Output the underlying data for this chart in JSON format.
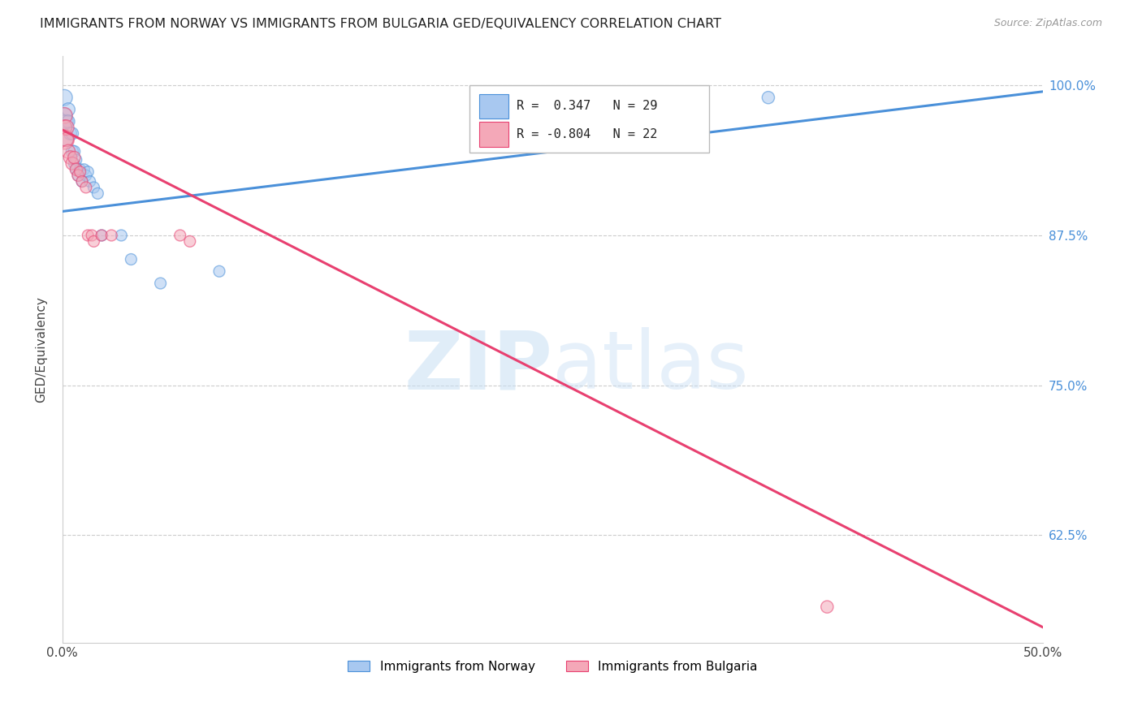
{
  "title": "IMMIGRANTS FROM NORWAY VS IMMIGRANTS FROM BULGARIA GED/EQUIVALENCY CORRELATION CHART",
  "source": "Source: ZipAtlas.com",
  "ylabel": "GED/Equivalency",
  "yticks": [
    0.625,
    0.75,
    0.875,
    1.0
  ],
  "ytick_labels": [
    "62.5%",
    "75.0%",
    "87.5%",
    "100.0%"
  ],
  "xmin": 0.0,
  "xmax": 0.5,
  "ymin": 0.535,
  "ymax": 1.025,
  "norway_R": 0.347,
  "norway_N": 29,
  "bulgaria_R": -0.804,
  "bulgaria_N": 22,
  "norway_color": "#a8c8f0",
  "bulgaria_color": "#f4a8b8",
  "norway_line_color": "#4a90d9",
  "bulgaria_line_color": "#e84070",
  "watermark_color": "#ddeeff",
  "norway_line_x0": 0.0,
  "norway_line_x1": 0.5,
  "norway_line_y0": 0.895,
  "norway_line_y1": 0.995,
  "bulgaria_line_x0": 0.0,
  "bulgaria_line_x1": 0.5,
  "bulgaria_line_y0": 0.963,
  "bulgaria_line_y1": 0.548,
  "norway_x": [
    0.001,
    0.001,
    0.001,
    0.002,
    0.002,
    0.003,
    0.003,
    0.004,
    0.005,
    0.005,
    0.006,
    0.006,
    0.007,
    0.007,
    0.008,
    0.009,
    0.01,
    0.011,
    0.012,
    0.013,
    0.014,
    0.016,
    0.018,
    0.02,
    0.03,
    0.035,
    0.05,
    0.08,
    0.36
  ],
  "norway_y": [
    0.99,
    0.975,
    0.965,
    0.97,
    0.955,
    0.98,
    0.97,
    0.96,
    0.945,
    0.96,
    0.945,
    0.935,
    0.938,
    0.93,
    0.925,
    0.93,
    0.92,
    0.93,
    0.925,
    0.928,
    0.92,
    0.915,
    0.91,
    0.875,
    0.875,
    0.855,
    0.835,
    0.845,
    0.99
  ],
  "norway_sizes": [
    200,
    180,
    160,
    150,
    140,
    140,
    130,
    130,
    120,
    120,
    110,
    100,
    100,
    100,
    100,
    100,
    100,
    100,
    100,
    100,
    100,
    100,
    100,
    100,
    100,
    100,
    100,
    100,
    120
  ],
  "bulgaria_x": [
    0.001,
    0.001,
    0.001,
    0.002,
    0.002,
    0.003,
    0.004,
    0.005,
    0.006,
    0.007,
    0.008,
    0.009,
    0.01,
    0.012,
    0.013,
    0.015,
    0.016,
    0.02,
    0.025,
    0.06,
    0.065,
    0.39
  ],
  "bulgaria_y": [
    0.975,
    0.965,
    0.955,
    0.965,
    0.955,
    0.945,
    0.94,
    0.935,
    0.94,
    0.93,
    0.925,
    0.928,
    0.92,
    0.915,
    0.875,
    0.875,
    0.87,
    0.875,
    0.875,
    0.875,
    0.87,
    0.565
  ],
  "bulgaria_sizes": [
    200,
    180,
    300,
    180,
    160,
    150,
    140,
    130,
    120,
    120,
    110,
    100,
    100,
    100,
    100,
    100,
    100,
    100,
    100,
    100,
    100,
    120
  ]
}
